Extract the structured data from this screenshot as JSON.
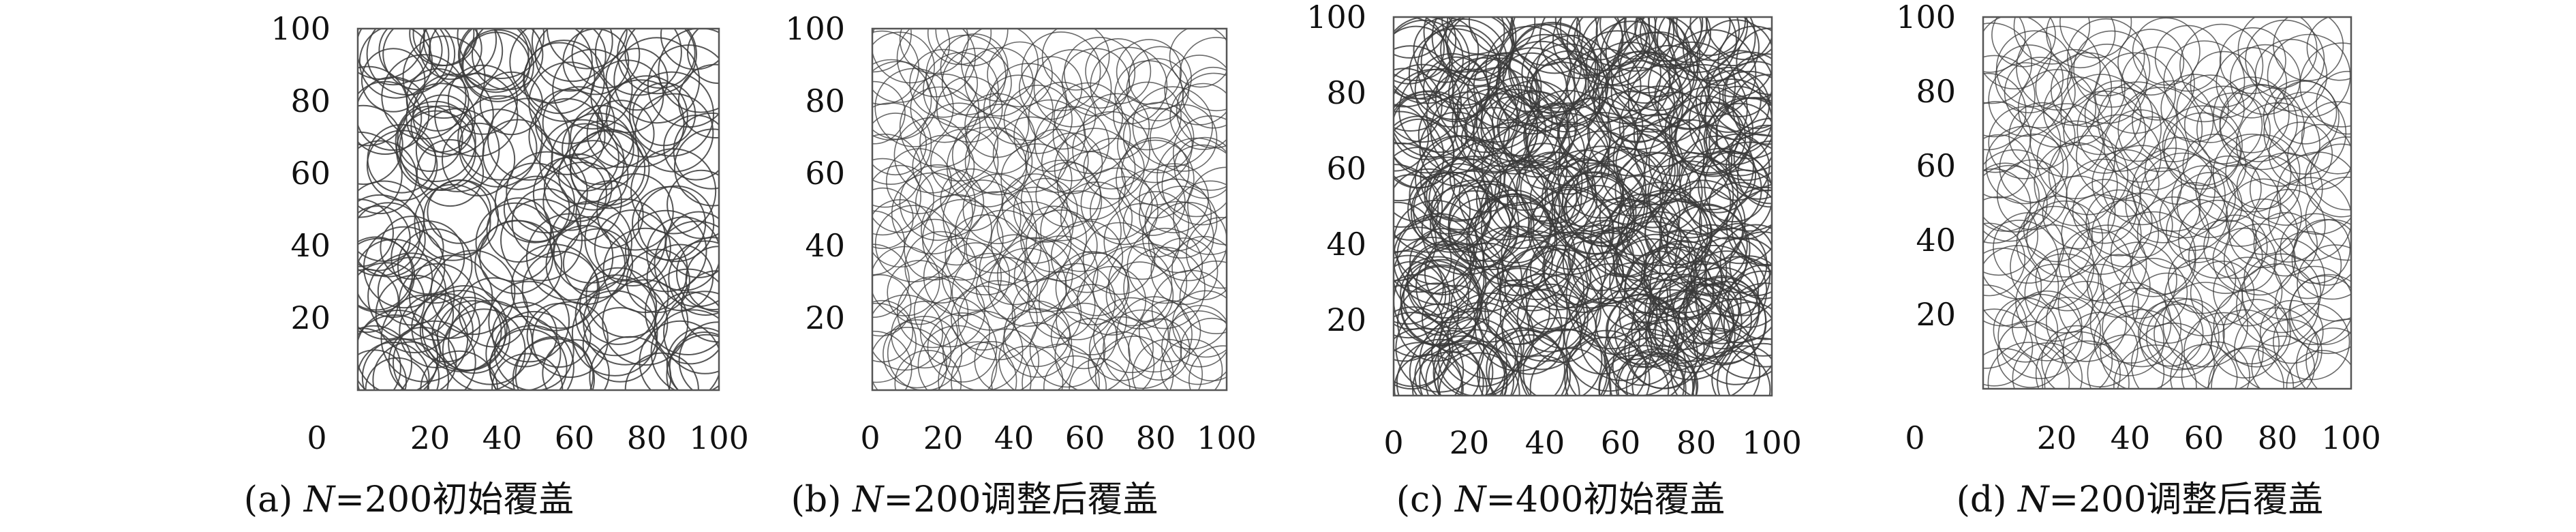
{
  "chart_data": [
    {
      "type": "scatter",
      "label_prefix": "(a) ",
      "n_label": "N",
      "caption_suffix": "=200初始覆盖",
      "xlim": [
        0,
        100
      ],
      "ylim": [
        0,
        100
      ],
      "x_ticks": [
        0,
        20,
        40,
        60,
        80,
        100
      ],
      "y_ticks": [
        20,
        40,
        60,
        80,
        100
      ],
      "sensor_count": 200,
      "sensing_radius": 10,
      "distribution": "random-clustered"
    },
    {
      "type": "scatter",
      "label_prefix": "(b) ",
      "n_label": "N",
      "caption_suffix": "=200调整后覆盖",
      "xlim": [
        0,
        100
      ],
      "ylim": [
        0,
        100
      ],
      "x_ticks": [
        0,
        20,
        40,
        60,
        80,
        100
      ],
      "y_ticks": [
        20,
        40,
        60,
        80,
        100
      ],
      "sensor_count": 200,
      "sensing_radius": 10,
      "distribution": "uniform-adjusted"
    },
    {
      "type": "scatter",
      "label_prefix": "(c) ",
      "n_label": "N",
      "caption_suffix": "=400初始覆盖",
      "xlim": [
        0,
        100
      ],
      "ylim": [
        0,
        100
      ],
      "x_ticks": [
        0,
        20,
        40,
        60,
        80,
        100
      ],
      "y_ticks": [
        20,
        40,
        60,
        80,
        100
      ],
      "sensor_count": 400,
      "sensing_radius": 10,
      "distribution": "random-clustered"
    },
    {
      "type": "scatter",
      "label_prefix": "(d) ",
      "n_label": "N",
      "caption_suffix": "=200调整后覆盖",
      "xlim": [
        0,
        100
      ],
      "ylim": [
        0,
        100
      ],
      "x_ticks": [
        0,
        20,
        40,
        60,
        80,
        100
      ],
      "y_ticks": [
        20,
        40,
        60,
        80,
        100
      ],
      "sensor_count": 200,
      "sensing_radius": 10,
      "distribution": "uniform-adjusted"
    }
  ],
  "colors": {
    "circle": "#3a3a3a",
    "axis": "#555555"
  }
}
